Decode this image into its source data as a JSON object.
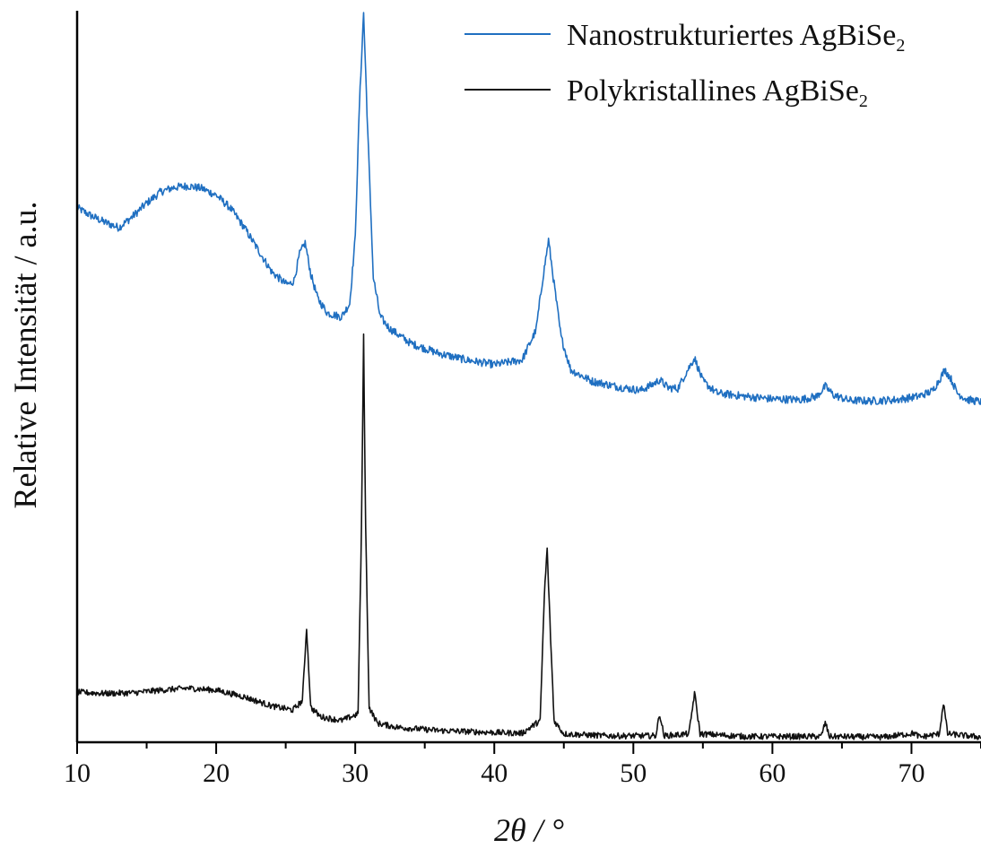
{
  "chart_data": {
    "type": "line",
    "xlabel": "2θ / °",
    "ylabel": "Relative Intensität  / a.u.",
    "xlim": [
      10,
      75
    ],
    "ylim": [
      0,
      1.1
    ],
    "x_ticks": [
      10,
      20,
      30,
      40,
      50,
      60,
      70
    ],
    "y_ticks_shown": false,
    "grid": false,
    "legend_position": "top-right",
    "series": [
      {
        "name": "Nanostrukturiertes AgBiSe₂",
        "legend_base": "Nanostrukturiertes AgBiSe",
        "legend_sub": "2",
        "color": "#1f6fc1",
        "x": [
          10,
          11,
          12,
          13,
          14,
          15,
          16,
          17,
          18,
          19,
          20,
          21,
          22,
          23,
          24,
          25,
          25.3,
          25.6,
          26.0,
          26.4,
          26.8,
          27.3,
          28,
          29,
          29.6,
          30.0,
          30.3,
          30.6,
          30.9,
          31.3,
          31.8,
          32.5,
          34,
          36,
          38,
          40,
          42,
          43.0,
          43.5,
          43.9,
          44.3,
          44.8,
          45.5,
          47,
          49,
          50.5,
          51.3,
          51.9,
          52.5,
          53.2,
          53.8,
          54.4,
          55.0,
          56,
          58,
          60,
          62,
          63.2,
          63.8,
          64.4,
          65.5,
          67,
          69,
          70.5,
          71.5,
          72.0,
          72.4,
          72.8,
          73.3,
          74,
          75
        ],
        "y": [
          0.805,
          0.793,
          0.783,
          0.775,
          0.792,
          0.812,
          0.829,
          0.836,
          0.838,
          0.834,
          0.824,
          0.805,
          0.776,
          0.742,
          0.708,
          0.69,
          0.69,
          0.695,
          0.735,
          0.752,
          0.705,
          0.668,
          0.646,
          0.64,
          0.66,
          0.76,
          0.96,
          1.1,
          0.92,
          0.7,
          0.64,
          0.622,
          0.6,
          0.585,
          0.575,
          0.568,
          0.575,
          0.62,
          0.7,
          0.756,
          0.69,
          0.61,
          0.56,
          0.543,
          0.534,
          0.529,
          0.537,
          0.545,
          0.533,
          0.532,
          0.556,
          0.578,
          0.543,
          0.525,
          0.52,
          0.516,
          0.515,
          0.52,
          0.535,
          0.522,
          0.514,
          0.513,
          0.515,
          0.52,
          0.528,
          0.545,
          0.56,
          0.548,
          0.525,
          0.515,
          0.512
        ]
      },
      {
        "name": "Polykristallines AgBiSe₂",
        "legend_base": "Polykristallines AgBiSe",
        "legend_sub": "2",
        "color": "#111111",
        "x": [
          10,
          12,
          14,
          16,
          18,
          20,
          22,
          24,
          25.5,
          26.2,
          26.5,
          26.8,
          27.5,
          29,
          30.2,
          30.45,
          30.6,
          30.75,
          31.0,
          31.6,
          33,
          36,
          40,
          42,
          43.3,
          43.6,
          43.8,
          44.0,
          44.3,
          45,
          48,
          51.6,
          51.9,
          52.2,
          54.0,
          54.4,
          54.8,
          58,
          63.5,
          63.8,
          64.1,
          68,
          70.2,
          70.6,
          72.0,
          72.3,
          72.6,
          75
        ],
        "y": [
          0.073,
          0.071,
          0.072,
          0.076,
          0.079,
          0.076,
          0.066,
          0.052,
          0.046,
          0.06,
          0.17,
          0.05,
          0.036,
          0.03,
          0.04,
          0.32,
          0.61,
          0.32,
          0.05,
          0.026,
          0.02,
          0.015,
          0.012,
          0.011,
          0.03,
          0.22,
          0.29,
          0.18,
          0.03,
          0.01,
          0.007,
          0.007,
          0.04,
          0.007,
          0.01,
          0.072,
          0.01,
          0.006,
          0.006,
          0.027,
          0.006,
          0.005,
          0.011,
          0.005,
          0.01,
          0.057,
          0.01,
          0.005
        ]
      }
    ]
  }
}
